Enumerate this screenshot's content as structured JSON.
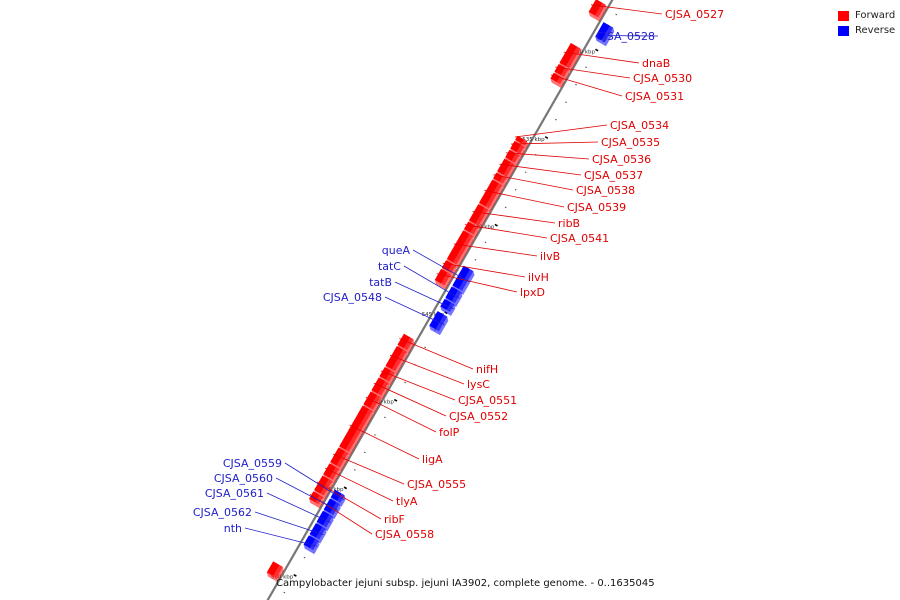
{
  "colors": {
    "forward": "#ff0000",
    "reverse": "#0000ff",
    "forward_label": "#e00000",
    "reverse_label": "#2020c8"
  },
  "legend": [
    {
      "label": "Forward",
      "color": "#ff0000"
    },
    {
      "label": "Reverse",
      "color": "#0000ff"
    }
  ],
  "caption": "Campylobacter jejuni subsp. jejuni IA3902, complete genome. - 0..1635045",
  "ticks": [
    {
      "label": "530 kbp",
      "kbp": 530
    },
    {
      "label": "535 kbp",
      "kbp": 535
    },
    {
      "label": "540 kbp",
      "kbp": 540
    },
    {
      "label": "545 kbp",
      "kbp": 545
    },
    {
      "label": "550 kbp",
      "kbp": 550
    },
    {
      "label": "555 kbp",
      "kbp": 555
    },
    {
      "label": "560 kbp",
      "kbp": 560
    }
  ],
  "forward_genes": [
    {
      "name": "CJSA_0527",
      "start": 527.8,
      "end": 528.6
    },
    {
      "name": "dnaB",
      "start": 530.3,
      "end": 531.5
    },
    {
      "name": "CJSA_0530",
      "start": 531.5,
      "end": 532.0
    },
    {
      "name": "CJSA_0531",
      "start": 532.0,
      "end": 532.4
    },
    {
      "name": "CJSA_0534",
      "start": 535.6,
      "end": 535.9
    },
    {
      "name": "CJSA_0535",
      "start": 535.9,
      "end": 536.4
    },
    {
      "name": "CJSA_0536",
      "start": 536.4,
      "end": 536.9
    },
    {
      "name": "CJSA_0537",
      "start": 536.9,
      "end": 537.7
    },
    {
      "name": "CJSA_0538",
      "start": 537.7,
      "end": 538.1
    },
    {
      "name": "CJSA_0539",
      "start": 538.1,
      "end": 539.5
    },
    {
      "name": "ribB",
      "start": 539.5,
      "end": 540.5
    },
    {
      "name": "CJSA_0541",
      "start": 540.5,
      "end": 541.0
    },
    {
      "name": "ilvB",
      "start": 541.0,
      "end": 542.7
    },
    {
      "name": "ilvH",
      "start": 542.7,
      "end": 543.2
    },
    {
      "name": "lpxD",
      "start": 543.2,
      "end": 543.9
    },
    {
      "name": "nifH",
      "start": 546.9,
      "end": 547.6
    },
    {
      "name": "lysC",
      "start": 547.6,
      "end": 548.8
    },
    {
      "name": "CJSA_0551",
      "start": 548.8,
      "end": 549.4
    },
    {
      "name": "CJSA_0552",
      "start": 549.4,
      "end": 550.2
    },
    {
      "name": "folP",
      "start": 550.2,
      "end": 551.0
    },
    {
      "name": "ligA",
      "start": 551.0,
      "end": 553.4
    },
    {
      "name": "CJSA_0555",
      "start": 553.4,
      "end": 554.3
    },
    {
      "name": "tlyA",
      "start": 554.3,
      "end": 555.0
    },
    {
      "name": "ribF",
      "start": 555.0,
      "end": 555.9
    },
    {
      "name": "CJSA_0558",
      "start": 555.9,
      "end": 556.4
    },
    {
      "name": "",
      "start": 559.9,
      "end": 560.6
    }
  ],
  "reverse_genes": [
    {
      "name": "CJSA_0528",
      "start": 528.6,
      "end": 529.5
    },
    {
      "name": "queA",
      "start": 542.5,
      "end": 543.7
    },
    {
      "name": "tatC",
      "start": 543.7,
      "end": 544.4
    },
    {
      "name": "tatB",
      "start": 544.4,
      "end": 544.9
    },
    {
      "name": "CJSA_0548",
      "start": 545.1,
      "end": 546.0
    },
    {
      "name": "CJSA_0559",
      "start": 555.3,
      "end": 555.8
    },
    {
      "name": "CJSA_0560",
      "start": 555.8,
      "end": 556.5
    },
    {
      "name": "CJSA_0561",
      "start": 556.5,
      "end": 557.2
    },
    {
      "name": "CJSA_0562",
      "start": 557.2,
      "end": 557.9
    },
    {
      "name": "nth",
      "start": 557.9,
      "end": 558.5
    }
  ]
}
